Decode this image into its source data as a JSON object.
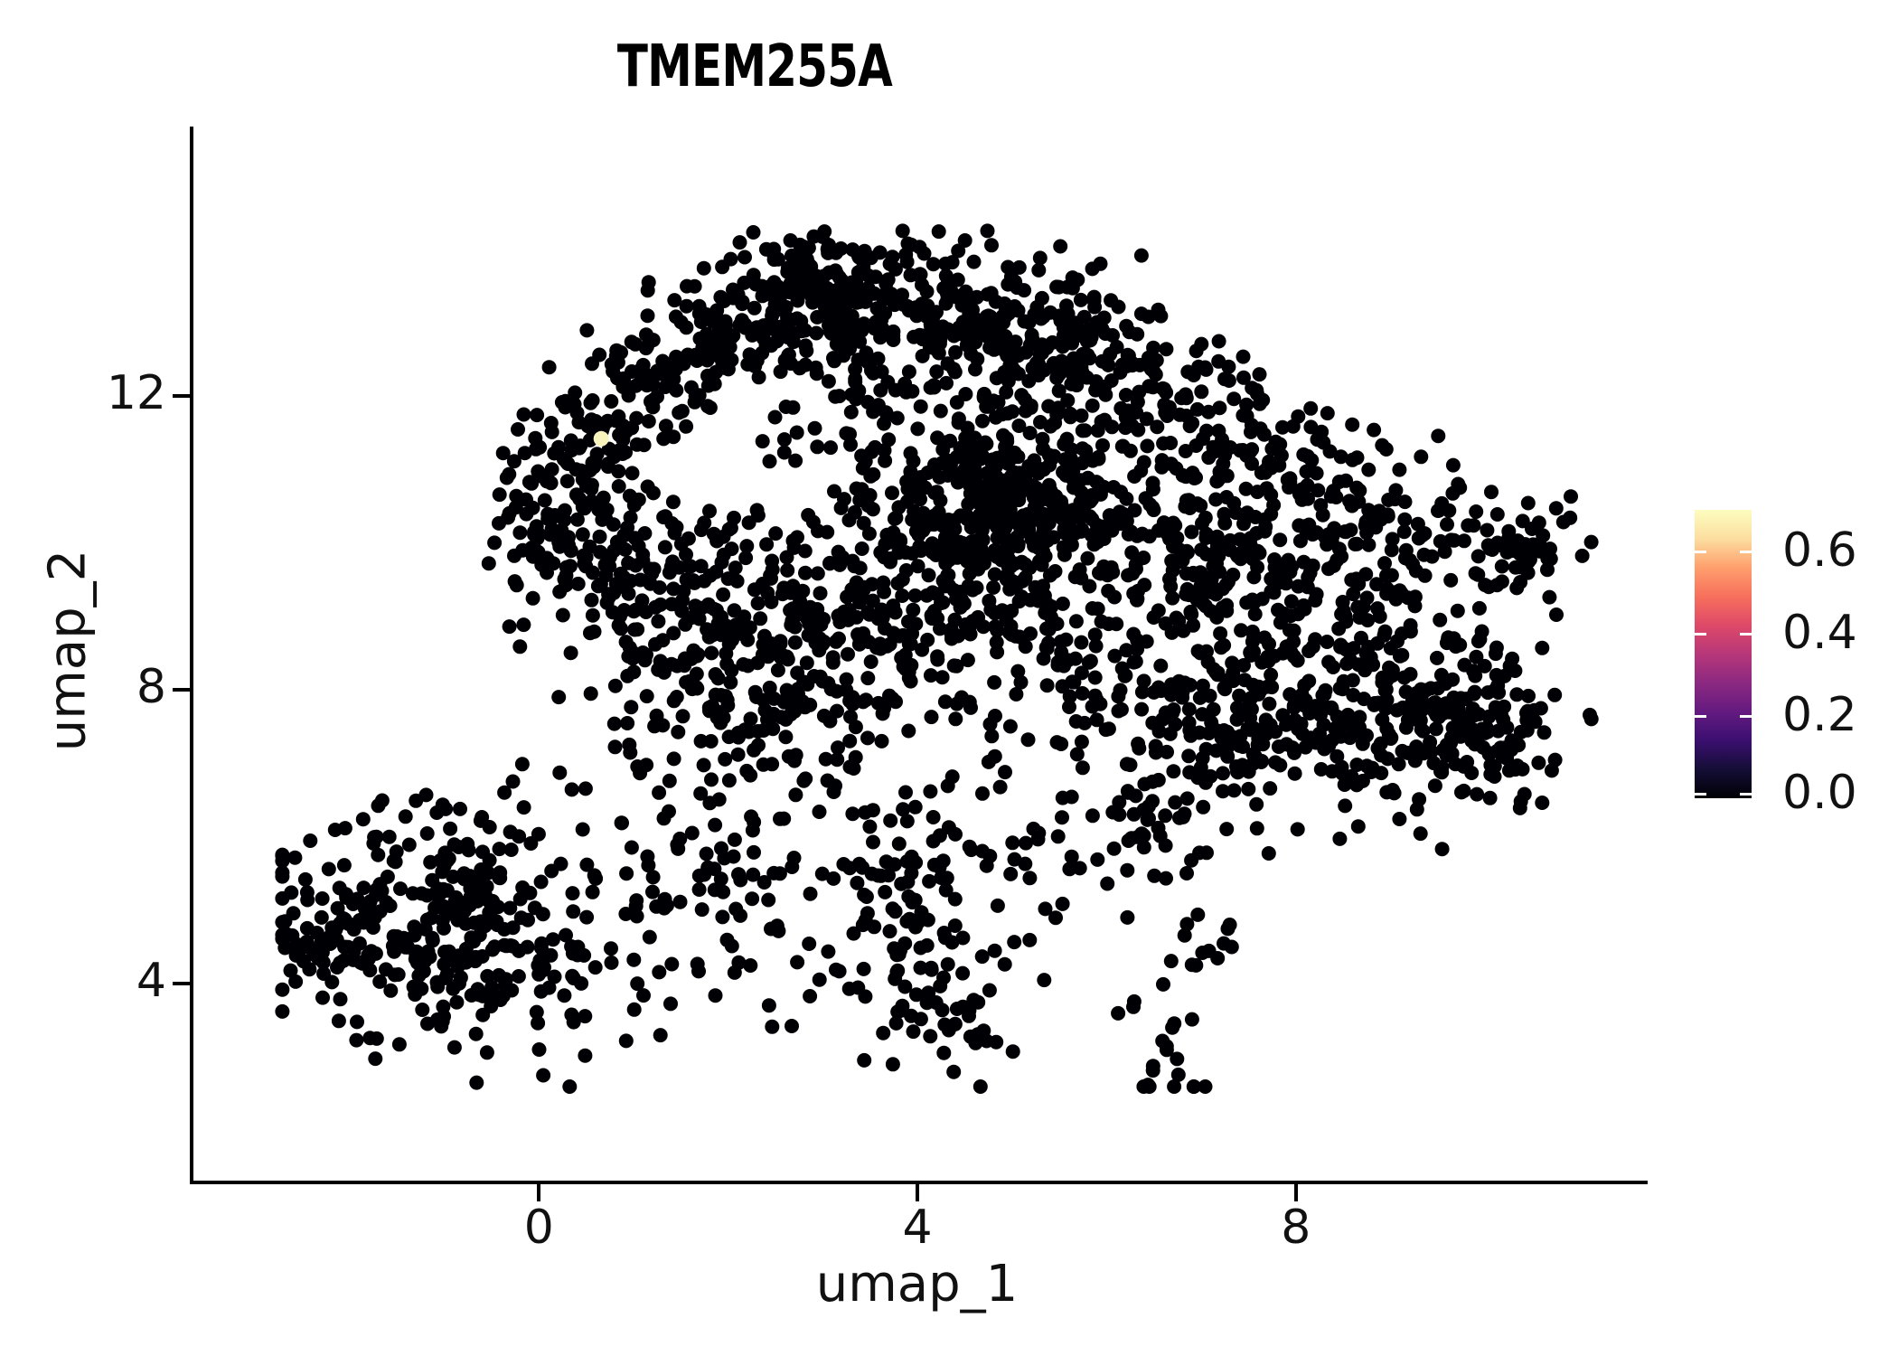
{
  "chart_data": {
    "type": "scatter",
    "title": "TMEM255A",
    "xlabel": "umap_1",
    "ylabel": "umap_2",
    "xlim": [
      -3.69,
      11.68
    ],
    "ylim": [
      1.32,
      15.67
    ],
    "xticks": [
      0,
      4,
      8
    ],
    "yticks": [
      4,
      8,
      12
    ],
    "grid": false,
    "background": "#ffffff",
    "point_color": "#000004",
    "point_radius_px": 8,
    "seed": 42,
    "cluster_format": [
      "center_x",
      "center_y",
      "spread_x",
      "spread_y",
      "n_points"
    ],
    "clusters": [
      [
        2.9,
        13.55,
        0.45,
        0.32,
        90
      ],
      [
        4.0,
        13.05,
        1.05,
        0.5,
        300
      ],
      [
        5.35,
        12.5,
        0.6,
        0.45,
        110
      ],
      [
        2.0,
        12.9,
        0.4,
        0.33,
        70
      ],
      [
        1.3,
        12.3,
        0.38,
        0.33,
        60
      ],
      [
        0.65,
        11.65,
        0.35,
        0.35,
        55
      ],
      [
        0.2,
        10.3,
        0.38,
        0.72,
        140
      ],
      [
        1.15,
        9.7,
        0.45,
        0.55,
        80
      ],
      [
        2.35,
        8.4,
        0.8,
        0.85,
        260
      ],
      [
        4.3,
        10.7,
        1.0,
        0.95,
        230
      ],
      [
        5.0,
        10.55,
        0.55,
        0.5,
        260
      ],
      [
        3.6,
        9.0,
        0.7,
        0.7,
        120
      ],
      [
        5.0,
        8.6,
        0.6,
        0.6,
        90
      ],
      [
        6.2,
        8.9,
        0.7,
        0.9,
        90
      ],
      [
        6.6,
        12.25,
        0.45,
        0.4,
        50
      ],
      [
        7.6,
        11.35,
        0.6,
        0.5,
        70
      ],
      [
        8.6,
        10.45,
        0.55,
        0.45,
        70
      ],
      [
        8.0,
        9.55,
        0.9,
        0.55,
        160
      ],
      [
        8.8,
        7.8,
        0.85,
        0.8,
        300
      ],
      [
        7.0,
        7.4,
        0.6,
        0.8,
        130
      ],
      [
        10.0,
        7.5,
        0.5,
        0.55,
        70
      ],
      [
        10.3,
        10.0,
        0.38,
        0.3,
        55
      ],
      [
        -1.0,
        4.7,
        0.9,
        0.8,
        340
      ],
      [
        -2.2,
        4.6,
        0.35,
        0.3,
        40
      ],
      [
        1.6,
        5.6,
        0.75,
        0.9,
        80
      ],
      [
        3.7,
        5.2,
        0.8,
        1.0,
        150
      ],
      [
        4.2,
        3.6,
        0.45,
        0.5,
        40
      ],
      [
        6.2,
        6.0,
        0.6,
        0.5,
        40
      ],
      [
        6.9,
        4.5,
        0.22,
        0.2,
        14
      ],
      [
        6.55,
        3.0,
        0.25,
        0.4,
        20
      ],
      [
        6.9,
        10.6,
        0.5,
        0.5,
        60
      ]
    ],
    "data_bounds": {
      "x": [
        -2.75,
        11.55
      ],
      "y": [
        2.6,
        14.25
      ]
    },
    "highlight_point": {
      "x": 0.62,
      "y": 11.42,
      "value": 0.65,
      "color": "#f9f3bc"
    },
    "colorbar": {
      "range": [
        0.0,
        0.7
      ],
      "ticks": [
        0.6,
        0.4,
        0.2,
        0.0
      ],
      "tick_labels": [
        "0.6",
        "0.4",
        "0.2",
        "0.0"
      ],
      "colormap": "magma",
      "stops": [
        {
          "pos": 0.0,
          "hex": "#000004"
        },
        {
          "pos": 0.1,
          "hex": "#140e36"
        },
        {
          "pos": 0.2,
          "hex": "#3b0f70"
        },
        {
          "pos": 0.3,
          "hex": "#641a80"
        },
        {
          "pos": 0.4,
          "hex": "#8c2981"
        },
        {
          "pos": 0.5,
          "hex": "#b73779"
        },
        {
          "pos": 0.6,
          "hex": "#de4968"
        },
        {
          "pos": 0.7,
          "hex": "#f7705c"
        },
        {
          "pos": 0.8,
          "hex": "#fe9f6d"
        },
        {
          "pos": 0.9,
          "hex": "#fcdea0"
        },
        {
          "pos": 1.0,
          "hex": "#fcfdbf"
        }
      ]
    }
  }
}
